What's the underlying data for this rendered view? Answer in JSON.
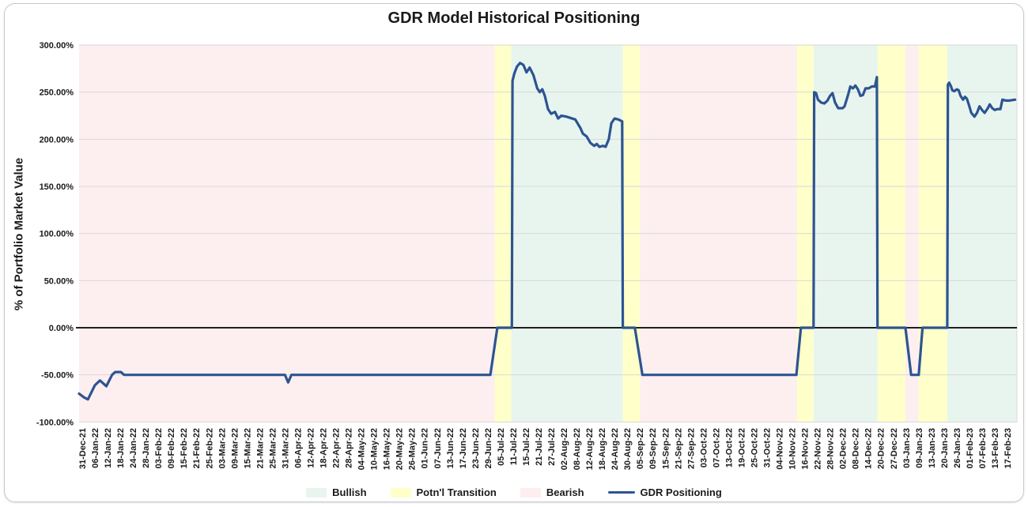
{
  "chart_data": {
    "type": "line",
    "title": "GDR Model Historical Positioning",
    "ylabel": "% of Portfolio Market Value",
    "ylim": [
      -100,
      300
    ],
    "grid": true,
    "legend_position": "bottom",
    "ytick_values": [
      300,
      250,
      200,
      150,
      100,
      50,
      0,
      -50,
      -100
    ],
    "ytick_labels": [
      "300.00%",
      "250.00%",
      "200.00%",
      "150.00%",
      "100.00%",
      "50.00%",
      "0.00%",
      "-50.00%",
      "-100.00%"
    ],
    "categories": [
      "31-Dec-21",
      "06-Jan-22",
      "12-Jan-22",
      "18-Jan-22",
      "24-Jan-22",
      "28-Jan-22",
      "03-Feb-22",
      "09-Feb-22",
      "15-Feb-22",
      "21-Feb-22",
      "25-Feb-22",
      "03-Mar-22",
      "09-Mar-22",
      "15-Mar-22",
      "21-Mar-22",
      "25-Mar-22",
      "31-Mar-22",
      "06-Apr-22",
      "12-Apr-22",
      "18-Apr-22",
      "22-Apr-22",
      "28-Apr-22",
      "04-May-22",
      "10-May-22",
      "16-May-22",
      "20-May-22",
      "26-May-22",
      "01-Jun-22",
      "07-Jun-22",
      "13-Jun-22",
      "17-Jun-22",
      "23-Jun-22",
      "29-Jun-22",
      "05-Jul-22",
      "11-Jul-22",
      "15-Jul-22",
      "21-Jul-22",
      "27-Jul-22",
      "02-Aug-22",
      "08-Aug-22",
      "12-Aug-22",
      "18-Aug-22",
      "24-Aug-22",
      "30-Aug-22",
      "05-Sep-22",
      "09-Sep-22",
      "15-Sep-22",
      "21-Sep-22",
      "27-Sep-22",
      "03-Oct-22",
      "07-Oct-22",
      "13-Oct-22",
      "19-Oct-22",
      "25-Oct-22",
      "31-Oct-22",
      "04-Nov-22",
      "10-Nov-22",
      "16-Nov-22",
      "22-Nov-22",
      "28-Nov-22",
      "02-Dec-22",
      "08-Dec-22",
      "14-Dec-22",
      "20-Dec-22",
      "27-Dec-22",
      "03-Jan-23",
      "09-Jan-23",
      "13-Jan-23",
      "20-Jan-23",
      "26-Jan-23",
      "01-Feb-23",
      "07-Feb-23",
      "13-Feb-23",
      "17-Feb-23"
    ],
    "regions": [
      {
        "label": "Bearish",
        "start": -0.25,
        "end": 32.55
      },
      {
        "label": "Potn'l Transition",
        "start": 32.55,
        "end": 33.85
      },
      {
        "label": "Bullish",
        "start": 33.85,
        "end": 42.65
      },
      {
        "label": "Potn'l Transition",
        "start": 42.65,
        "end": 44.0
      },
      {
        "label": "Bearish",
        "start": 44.0,
        "end": 56.4
      },
      {
        "label": "Potn'l Transition",
        "start": 56.4,
        "end": 57.7
      },
      {
        "label": "Bullish",
        "start": 57.7,
        "end": 62.75
      },
      {
        "label": "Potn'l Transition",
        "start": 62.75,
        "end": 64.95
      },
      {
        "label": "Bearish",
        "start": 64.95,
        "end": 66.0
      },
      {
        "label": "Potn'l Transition",
        "start": 66.0,
        "end": 68.25
      },
      {
        "label": "Bullish",
        "start": 68.25,
        "end": 73.75
      }
    ],
    "region_colors": {
      "Bullish": "#e8f5ee",
      "Potn'l Transition": "#ffffc9",
      "Bearish": "#fdeef0"
    },
    "series": [
      {
        "name": "GDR Positioning",
        "color": "#2d5492",
        "points": [
          [
            -0.25,
            -70
          ],
          [
            0.15,
            -74
          ],
          [
            0.45,
            -76
          ],
          [
            1,
            -61
          ],
          [
            1.4,
            -56
          ],
          [
            1.9,
            -62
          ],
          [
            2.35,
            -50
          ],
          [
            2.6,
            -47
          ],
          [
            3.05,
            -47
          ],
          [
            3.3,
            -50
          ],
          [
            16,
            -50
          ],
          [
            16.25,
            -58
          ],
          [
            16.5,
            -50
          ],
          [
            32.2,
            -50
          ],
          [
            32.75,
            0
          ],
          [
            33.9,
            0
          ],
          [
            33.95,
            262
          ],
          [
            34.1,
            270
          ],
          [
            34.3,
            277
          ],
          [
            34.55,
            281
          ],
          [
            34.8,
            279
          ],
          [
            35.05,
            271
          ],
          [
            35.3,
            276
          ],
          [
            35.6,
            268
          ],
          [
            35.9,
            254
          ],
          [
            36.1,
            250
          ],
          [
            36.3,
            253
          ],
          [
            36.5,
            246
          ],
          [
            36.75,
            232
          ],
          [
            37,
            227
          ],
          [
            37.3,
            229
          ],
          [
            37.55,
            222
          ],
          [
            37.8,
            225
          ],
          [
            38.2,
            224
          ],
          [
            38.9,
            221
          ],
          [
            39.3,
            212
          ],
          [
            39.5,
            206
          ],
          [
            39.8,
            203
          ],
          [
            40.1,
            196
          ],
          [
            40.4,
            193
          ],
          [
            40.6,
            195
          ],
          [
            40.8,
            192
          ],
          [
            41.1,
            193
          ],
          [
            41.3,
            192
          ],
          [
            41.55,
            200
          ],
          [
            41.75,
            217
          ],
          [
            42,
            222
          ],
          [
            42.3,
            221
          ],
          [
            42.6,
            219
          ],
          [
            42.65,
            0
          ],
          [
            43.6,
            0
          ],
          [
            44.2,
            -50
          ],
          [
            56.35,
            -50
          ],
          [
            56.7,
            0
          ],
          [
            57.7,
            0
          ],
          [
            57.75,
            250
          ],
          [
            57.9,
            249
          ],
          [
            58.05,
            242
          ],
          [
            58.3,
            239
          ],
          [
            58.55,
            238
          ],
          [
            58.8,
            241
          ],
          [
            59,
            246
          ],
          [
            59.2,
            249
          ],
          [
            59.4,
            239
          ],
          [
            59.65,
            233
          ],
          [
            60,
            233
          ],
          [
            60.15,
            235
          ],
          [
            60.4,
            246
          ],
          [
            60.6,
            256
          ],
          [
            60.8,
            254
          ],
          [
            61,
            257
          ],
          [
            61.2,
            253
          ],
          [
            61.4,
            246
          ],
          [
            61.6,
            247
          ],
          [
            61.8,
            254
          ],
          [
            62.05,
            254
          ],
          [
            62.3,
            256
          ],
          [
            62.55,
            256
          ],
          [
            62.7,
            266
          ],
          [
            62.75,
            0
          ],
          [
            64.95,
            0
          ],
          [
            65.4,
            -50
          ],
          [
            66,
            -50
          ],
          [
            66.3,
            0
          ],
          [
            68.25,
            0
          ],
          [
            68.3,
            258
          ],
          [
            68.4,
            260
          ],
          [
            68.55,
            256
          ],
          [
            68.65,
            252
          ],
          [
            68.8,
            251
          ],
          [
            69,
            253
          ],
          [
            69.15,
            252
          ],
          [
            69.3,
            246
          ],
          [
            69.5,
            242
          ],
          [
            69.65,
            245
          ],
          [
            69.8,
            243
          ],
          [
            69.95,
            237
          ],
          [
            70.15,
            228
          ],
          [
            70.4,
            224
          ],
          [
            70.6,
            228
          ],
          [
            70.8,
            235
          ],
          [
            71,
            231
          ],
          [
            71.2,
            228
          ],
          [
            71.45,
            233
          ],
          [
            71.6,
            237
          ],
          [
            71.8,
            233
          ],
          [
            72,
            231
          ],
          [
            72.2,
            232
          ],
          [
            72.45,
            232
          ],
          [
            72.6,
            242
          ],
          [
            72.9,
            241
          ],
          [
            73.1,
            241
          ],
          [
            73.6,
            242
          ]
        ]
      }
    ],
    "legend": [
      {
        "label": "Bullish",
        "type": "swatch",
        "color": "#e8f5ee"
      },
      {
        "label": "Potn'l Transition",
        "type": "swatch",
        "color": "#ffffc9"
      },
      {
        "label": "Bearish",
        "type": "swatch",
        "color": "#fdeef0"
      },
      {
        "label": "GDR Positioning",
        "type": "line",
        "color": "#2d5492"
      }
    ],
    "colors": {
      "gridline": "#d9d9d9",
      "zero_line": "#000000",
      "text": "#1a1a1a"
    }
  }
}
